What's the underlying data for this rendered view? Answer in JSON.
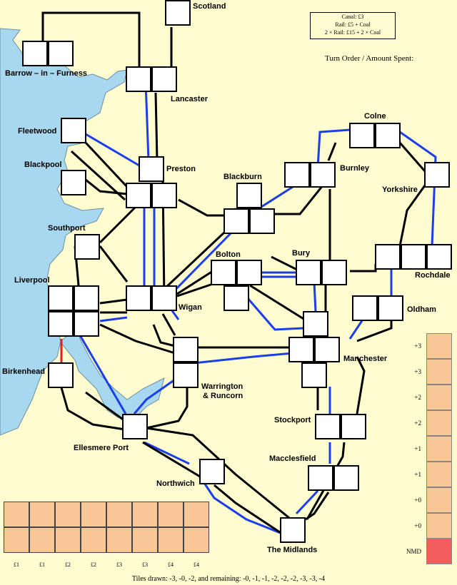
{
  "legend": {
    "canal": "Canal: £3",
    "rail": "Rail: £5 + Coal",
    "double_rail": "2 × Rail: £15 + 2 × Coal"
  },
  "turn_order_label": "Turn Order / Amount Spent:",
  "cities": {
    "scotland": "Scotland",
    "barrow": "Barrow – in – Furness",
    "lancaster": "Lancaster",
    "fleetwood": "Fleetwood",
    "blackpool": "Blackpool",
    "preston": "Preston",
    "colne": "Colne",
    "burnley": "Burnley",
    "blackburn": "Blackburn",
    "yorkshire": "Yorkshire",
    "southport": "Southport",
    "bolton": "Bolton",
    "bury": "Bury",
    "rochdale": "Rochdale",
    "liverpool": "Liverpool",
    "wigan": "Wigan",
    "oldham": "Oldham",
    "manchester": "Manchester",
    "birkenhead": "Birkenhead",
    "warrington": "Warrington",
    "runcorn": "& Runcorn",
    "ellesmere": "Ellesmere Port",
    "stockport": "Stockport",
    "macclesfield": "Macclesfield",
    "northwich": "Northwich",
    "midlands": "The Midlands"
  },
  "score_track": [
    "+3",
    "+3",
    "+2",
    "+2",
    "+1",
    "+1",
    "+0",
    "+0",
    "NMD"
  ],
  "hand_labels": [
    "£1",
    "£1",
    "£2",
    "£2",
    "£3",
    "£3",
    "£4",
    "£4"
  ],
  "tiles_drawn": "Tiles drawn: -3, -0, -2, and remaining: -0, -1, -1, -2, -2, -2, -3, -3, -4",
  "colors": {
    "background": "#fffdd0",
    "sea": "#a8d8ef",
    "canal": "#1a3ee8",
    "rail": "#000000",
    "tile_fill": "#f9c796",
    "nmd": "#f25c5c",
    "link_red": "#e02020"
  }
}
